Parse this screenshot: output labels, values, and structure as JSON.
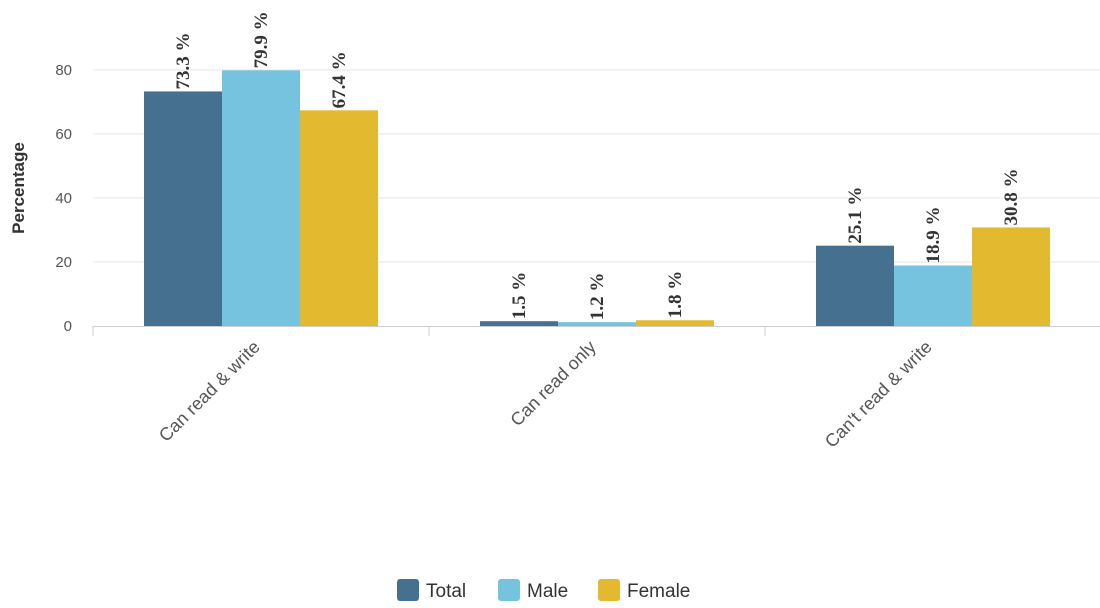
{
  "chart_data": {
    "type": "bar",
    "categories": [
      "Can read & write",
      "Can read only",
      "Can't read & write"
    ],
    "series": [
      {
        "name": "Total",
        "values": [
          73.3,
          1.5,
          25.1
        ],
        "color": "#457090"
      },
      {
        "name": "Male",
        "values": [
          79.9,
          1.2,
          18.9
        ],
        "color": "#76c3e0"
      },
      {
        "name": "Female",
        "values": [
          67.4,
          1.8,
          30.8
        ],
        "color": "#e3b92f"
      }
    ],
    "data_labels": [
      [
        "73.3 %",
        "1.5 %",
        "25.1 %"
      ],
      [
        "79.9 %",
        "1.2 %",
        "18.9 %"
      ],
      [
        "67.4 %",
        "1.8 %",
        "30.8 %"
      ]
    ],
    "ylabel": "Percentage",
    "yticks": [
      0,
      20,
      40,
      60,
      80
    ],
    "ylim": [
      0,
      80
    ],
    "grid": true,
    "legend_position": "bottom-center"
  }
}
